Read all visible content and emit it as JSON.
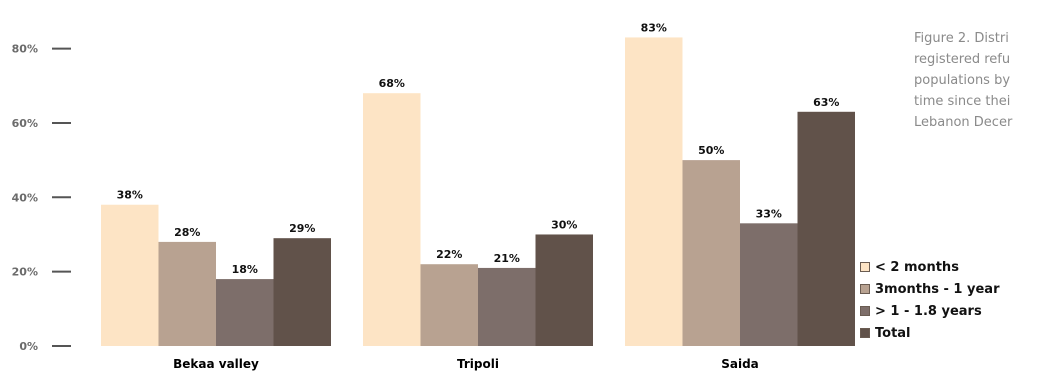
{
  "caption": {
    "lines": [
      "Figure 2. Distri",
      "registered refu",
      "populations by",
      "time since thei",
      "Lebanon Decer"
    ]
  },
  "chart_data": {
    "type": "bar",
    "categories": [
      "Bekaa valley",
      "Tripoli",
      "Saida"
    ],
    "series": [
      {
        "name": "< 2 months",
        "values": [
          38,
          68,
          83
        ],
        "color": "#fde4c5"
      },
      {
        "name": "3months - 1 year",
        "values": [
          28,
          22,
          50
        ],
        "color": "#b8a291"
      },
      {
        "name": "> 1 - 1.8 years",
        "values": [
          18,
          21,
          33
        ],
        "color": "#7d6e6a"
      },
      {
        "name": "Total",
        "values": [
          29,
          30,
          63
        ],
        "color": "#61524a"
      }
    ],
    "value_labels": [
      [
        "38%",
        "68%",
        "83%"
      ],
      [
        "28%",
        "22%",
        "50%"
      ],
      [
        "18%",
        "21%",
        "33%"
      ],
      [
        "29%",
        "30%",
        "63%"
      ]
    ],
    "yticks": [
      0,
      20,
      40,
      60,
      80
    ],
    "ytick_labels": [
      "0%",
      "20%",
      "40%",
      "60%",
      "80%"
    ],
    "ylim": [
      0,
      85
    ],
    "grid": false,
    "legend_position": "bottom-right"
  }
}
